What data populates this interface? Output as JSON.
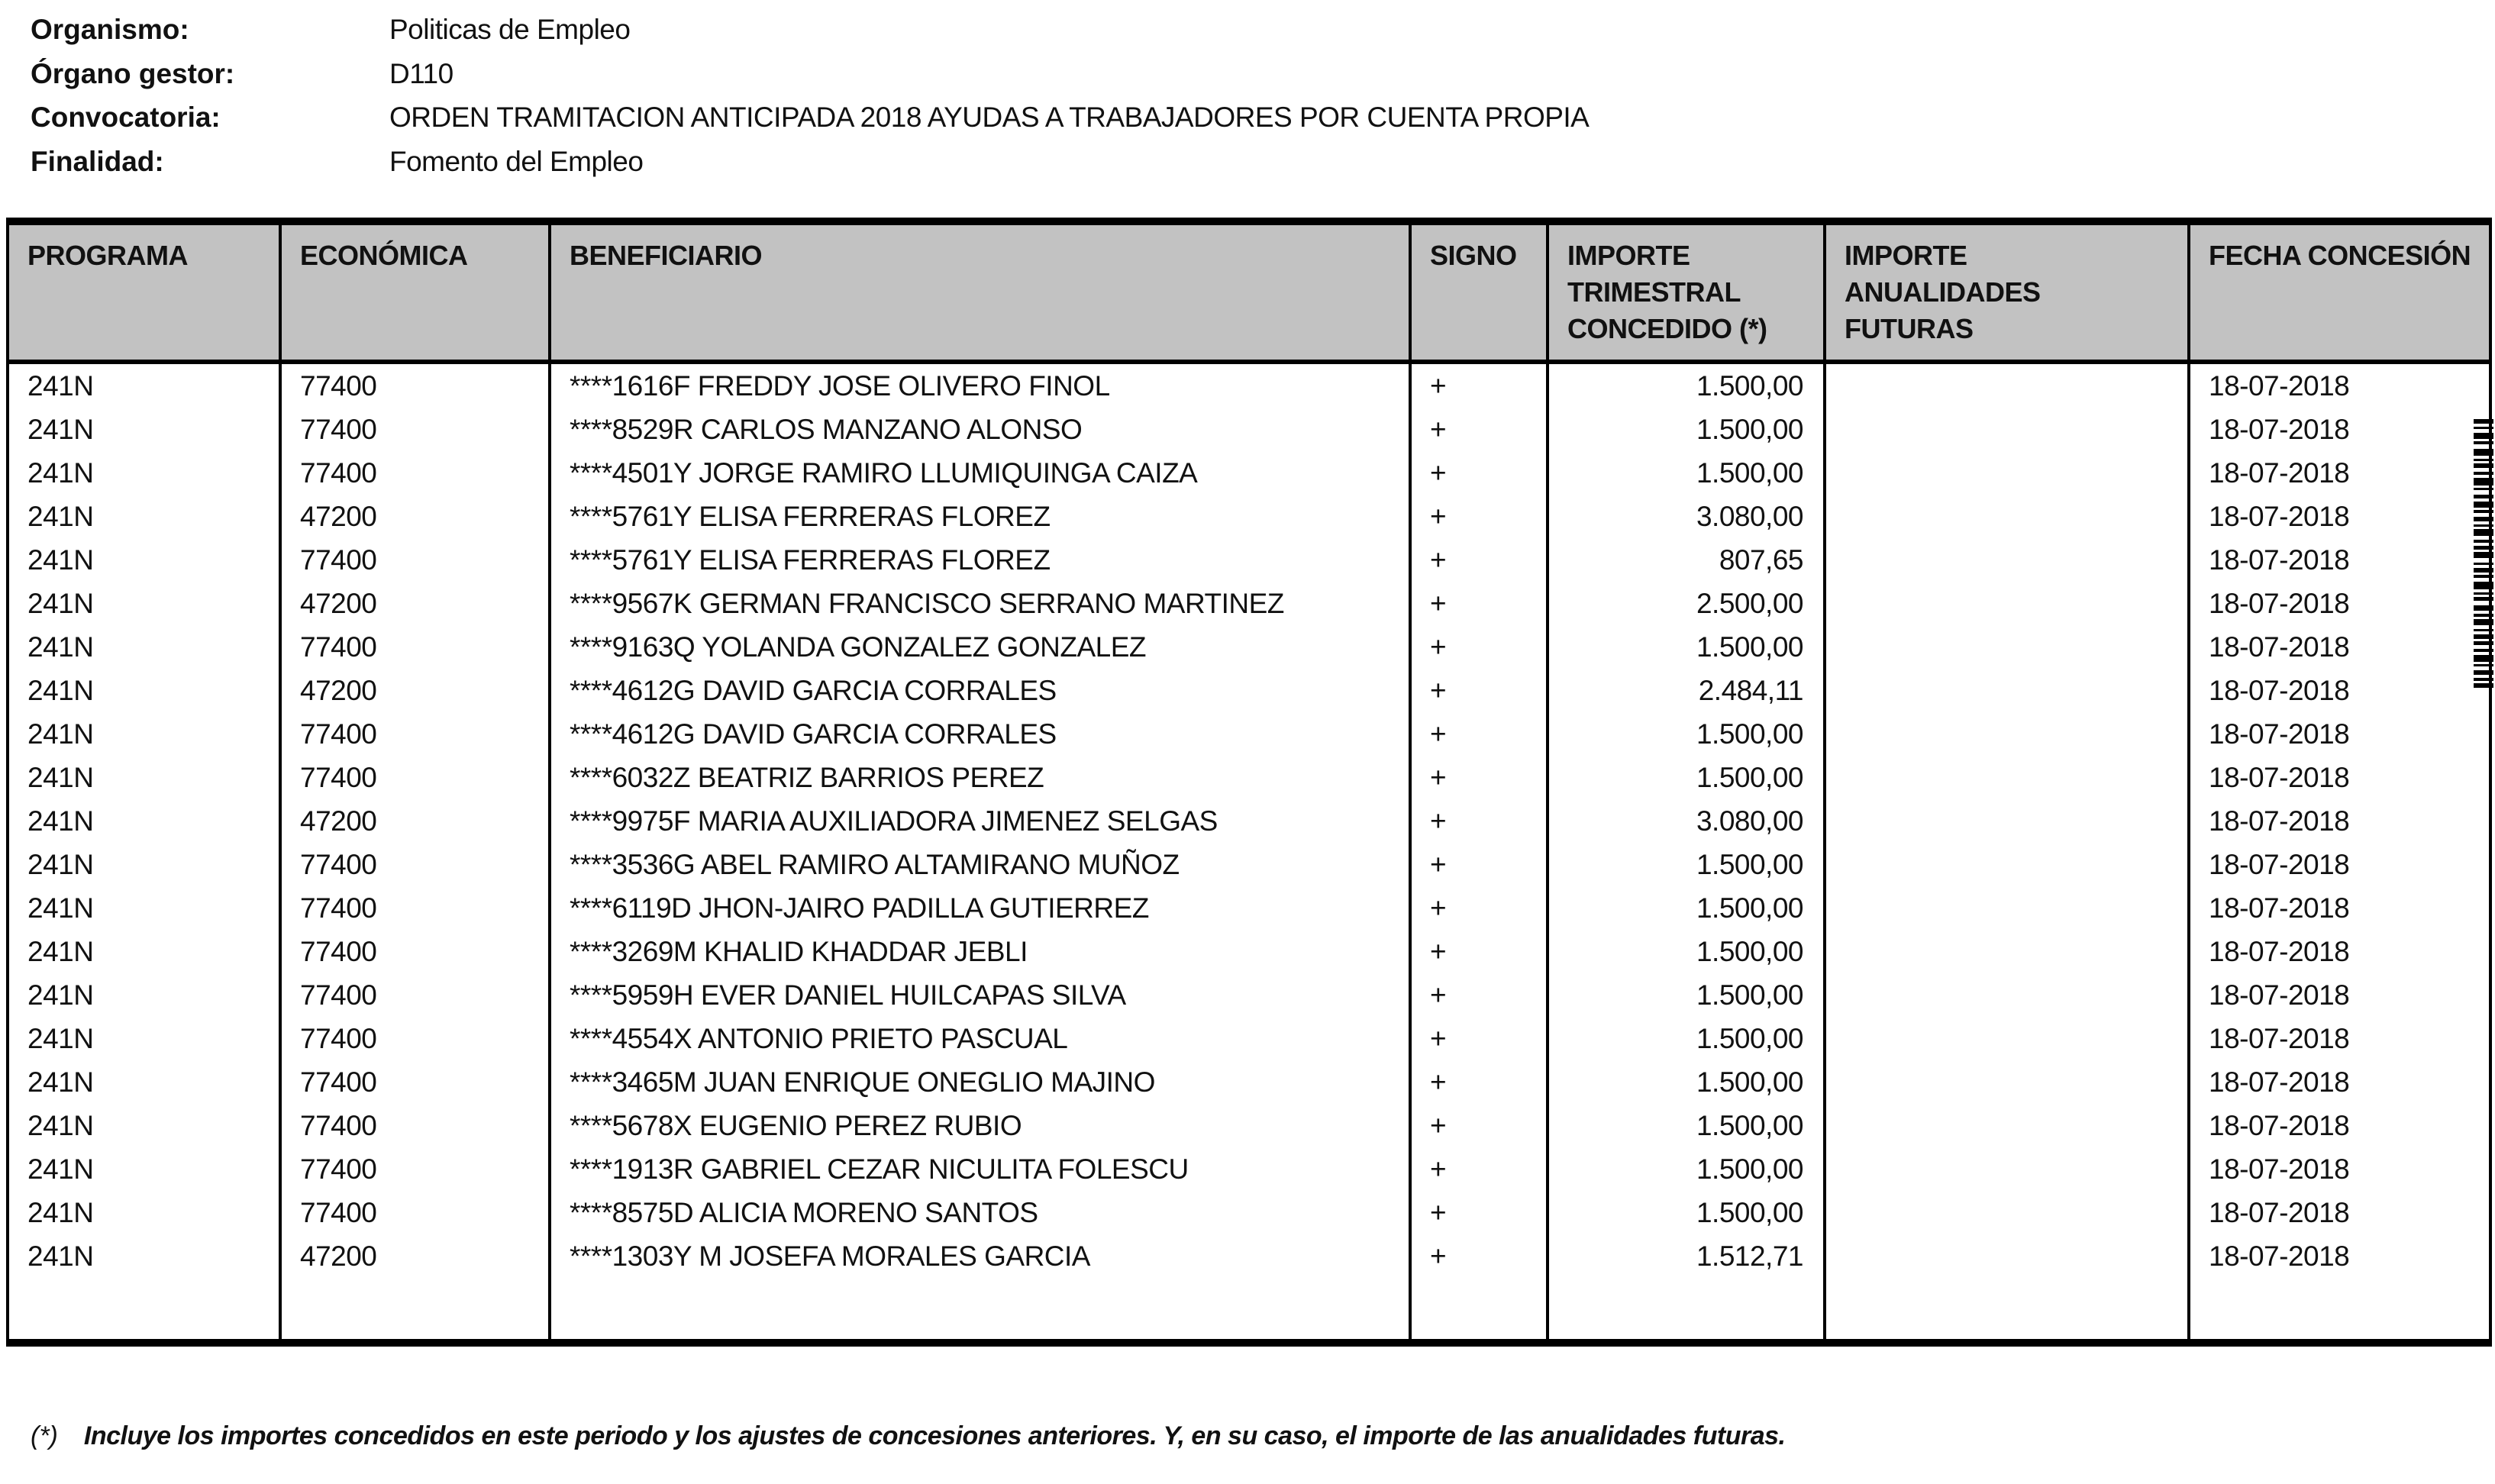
{
  "info": {
    "organismo_label": "Organismo:",
    "organismo_value": "Politicas de Empleo",
    "organo_gestor_label": "Órgano gestor:",
    "organo_gestor_value": "D110",
    "convocatoria_label": "Convocatoria:",
    "convocatoria_value": "ORDEN TRAMITACION ANTICIPADA 2018 AYUDAS A TRABAJADORES POR CUENTA PROPIA",
    "finalidad_label": "Finalidad:",
    "finalidad_value": "Fomento del Empleo"
  },
  "table": {
    "columns": [
      "PROGRAMA",
      "ECONÓMICA",
      "BENEFICIARIO",
      "SIGNO",
      "IMPORTE\nTRIMESTRAL\nCONCEDIDO (*)",
      "IMPORTE\nANUALIDADES\nFUTURAS",
      "FECHA CONCESIÓN"
    ],
    "rows": [
      {
        "programa": "241N",
        "economica": "77400",
        "beneficiario": "****1616F FREDDY JOSE OLIVERO FINOL",
        "signo": "+",
        "importe_trimestral": "1.500,00",
        "importe_anualidades": "",
        "fecha": "18-07-2018"
      },
      {
        "programa": "241N",
        "economica": "77400",
        "beneficiario": "****8529R CARLOS MANZANO ALONSO",
        "signo": "+",
        "importe_trimestral": "1.500,00",
        "importe_anualidades": "",
        "fecha": "18-07-2018"
      },
      {
        "programa": "241N",
        "economica": "77400",
        "beneficiario": "****4501Y JORGE RAMIRO LLUMIQUINGA CAIZA",
        "signo": "+",
        "importe_trimestral": "1.500,00",
        "importe_anualidades": "",
        "fecha": "18-07-2018"
      },
      {
        "programa": "241N",
        "economica": "47200",
        "beneficiario": "****5761Y ELISA FERRERAS FLOREZ",
        "signo": "+",
        "importe_trimestral": "3.080,00",
        "importe_anualidades": "",
        "fecha": "18-07-2018"
      },
      {
        "programa": "241N",
        "economica": "77400",
        "beneficiario": "****5761Y ELISA FERRERAS FLOREZ",
        "signo": "+",
        "importe_trimestral": "807,65",
        "importe_anualidades": "",
        "fecha": "18-07-2018"
      },
      {
        "programa": "241N",
        "economica": "47200",
        "beneficiario": "****9567K GERMAN FRANCISCO SERRANO MARTINEZ",
        "signo": "+",
        "importe_trimestral": "2.500,00",
        "importe_anualidades": "",
        "fecha": "18-07-2018"
      },
      {
        "programa": "241N",
        "economica": "77400",
        "beneficiario": "****9163Q YOLANDA GONZALEZ GONZALEZ",
        "signo": "+",
        "importe_trimestral": "1.500,00",
        "importe_anualidades": "",
        "fecha": "18-07-2018"
      },
      {
        "programa": "241N",
        "economica": "47200",
        "beneficiario": "****4612G DAVID GARCIA CORRALES",
        "signo": "+",
        "importe_trimestral": "2.484,11",
        "importe_anualidades": "",
        "fecha": "18-07-2018"
      },
      {
        "programa": "241N",
        "economica": "77400",
        "beneficiario": "****4612G DAVID GARCIA CORRALES",
        "signo": "+",
        "importe_trimestral": "1.500,00",
        "importe_anualidades": "",
        "fecha": "18-07-2018"
      },
      {
        "programa": "241N",
        "economica": "77400",
        "beneficiario": "****6032Z BEATRIZ BARRIOS PEREZ",
        "signo": "+",
        "importe_trimestral": "1.500,00",
        "importe_anualidades": "",
        "fecha": "18-07-2018"
      },
      {
        "programa": "241N",
        "economica": "47200",
        "beneficiario": "****9975F MARIA AUXILIADORA JIMENEZ SELGAS",
        "signo": "+",
        "importe_trimestral": "3.080,00",
        "importe_anualidades": "",
        "fecha": "18-07-2018"
      },
      {
        "programa": "241N",
        "economica": "77400",
        "beneficiario": "****3536G ABEL RAMIRO ALTAMIRANO MUÑOZ",
        "signo": "+",
        "importe_trimestral": "1.500,00",
        "importe_anualidades": "",
        "fecha": "18-07-2018"
      },
      {
        "programa": "241N",
        "economica": "77400",
        "beneficiario": "****6119D JHON-JAIRO PADILLA GUTIERREZ",
        "signo": "+",
        "importe_trimestral": "1.500,00",
        "importe_anualidades": "",
        "fecha": "18-07-2018"
      },
      {
        "programa": "241N",
        "economica": "77400",
        "beneficiario": "****3269M KHALID KHADDAR JEBLI",
        "signo": "+",
        "importe_trimestral": "1.500,00",
        "importe_anualidades": "",
        "fecha": "18-07-2018"
      },
      {
        "programa": "241N",
        "economica": "77400",
        "beneficiario": "****5959H EVER DANIEL HUILCAPAS SILVA",
        "signo": "+",
        "importe_trimestral": "1.500,00",
        "importe_anualidades": "",
        "fecha": "18-07-2018"
      },
      {
        "programa": "241N",
        "economica": "77400",
        "beneficiario": "****4554X ANTONIO PRIETO PASCUAL",
        "signo": "+",
        "importe_trimestral": "1.500,00",
        "importe_anualidades": "",
        "fecha": "18-07-2018"
      },
      {
        "programa": "241N",
        "economica": "77400",
        "beneficiario": "****3465M JUAN ENRIQUE ONEGLIO MAJINO",
        "signo": "+",
        "importe_trimestral": "1.500,00",
        "importe_anualidades": "",
        "fecha": "18-07-2018"
      },
      {
        "programa": "241N",
        "economica": "77400",
        "beneficiario": "****5678X EUGENIO PEREZ RUBIO",
        "signo": "+",
        "importe_trimestral": "1.500,00",
        "importe_anualidades": "",
        "fecha": "18-07-2018"
      },
      {
        "programa": "241N",
        "economica": "77400",
        "beneficiario": "****1913R GABRIEL CEZAR NICULITA FOLESCU",
        "signo": "+",
        "importe_trimestral": "1.500,00",
        "importe_anualidades": "",
        "fecha": "18-07-2018"
      },
      {
        "programa": "241N",
        "economica": "77400",
        "beneficiario": "****8575D ALICIA MORENO SANTOS",
        "signo": "+",
        "importe_trimestral": "1.500,00",
        "importe_anualidades": "",
        "fecha": "18-07-2018"
      },
      {
        "programa": "241N",
        "economica": "47200",
        "beneficiario": "****1303Y M JOSEFA MORALES GARCIA",
        "signo": "+",
        "importe_trimestral": "1.512,71",
        "importe_anualidades": "",
        "fecha": "18-07-2018"
      }
    ]
  },
  "footnote": {
    "marker": "(*)",
    "text": "Incluye los importes concedidos en este periodo y los ajustes de concesiones anteriores. Y, en su caso, el importe de las anualidades futuras."
  },
  "icons": {
    "barcode": "vertical-barcode-strip"
  },
  "colors": {
    "header_bg": "#c2c2c2",
    "border": "#000000",
    "page_bg": "#ffffff"
  }
}
